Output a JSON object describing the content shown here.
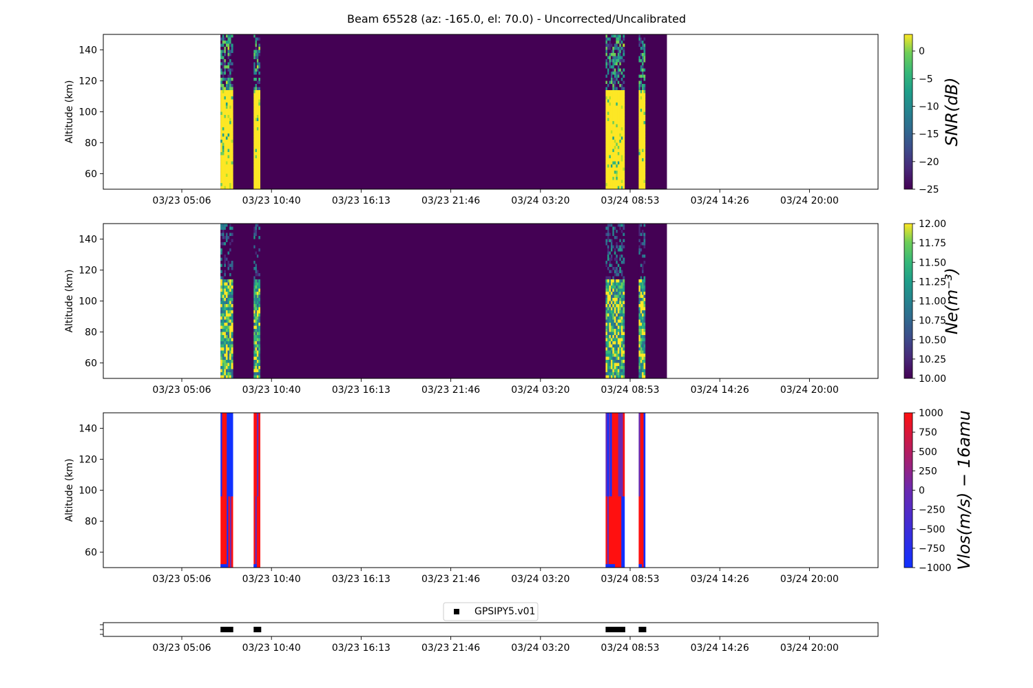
{
  "chart_data": {
    "title": "Beam 65528 (az: -165.0, el: 70.0) - Uncorrected/Uncalibrated",
    "x_ticks": [
      "03/23 05:06",
      "03/23 10:40",
      "03/23 16:13",
      "03/23 21:46",
      "03/24 03:20",
      "03/24 08:53",
      "03/24 14:26",
      "03/24 20:00"
    ],
    "y_ticks": [
      "60",
      "80",
      "100",
      "120",
      "140"
    ],
    "ylim": [
      50,
      150
    ],
    "bursts": [
      {
        "start": "03/23 07:30",
        "end": "03/23 08:16"
      },
      {
        "start": "03/23 09:33",
        "end": "03/23 09:57"
      },
      {
        "start": "03/24 07:22",
        "end": "03/24 08:32"
      },
      {
        "start": "03/24 09:25",
        "end": "03/24 09:49"
      }
    ],
    "data_end": "03/24 11:10",
    "panels": [
      {
        "type": "heatmap",
        "ylabel": "Altitude (km)",
        "colorbar_label": "SNR(dB)",
        "colormap": "viridis",
        "colorbar_ticks": [
          "0",
          "−5",
          "−10",
          "−15",
          "−20",
          "−25"
        ],
        "clim": [
          -25,
          3
        ]
      },
      {
        "type": "heatmap",
        "ylabel": "Altitude (km)",
        "colorbar_label": "Ne(m⁻³)",
        "colormap": "viridis",
        "colorbar_ticks": [
          "12.00",
          "11.75",
          "11.50",
          "11.25",
          "11.00",
          "10.75",
          "10.50",
          "10.25",
          "10.00"
        ],
        "clim": [
          10,
          12
        ]
      },
      {
        "type": "heatmap",
        "ylabel": "Altitude (km)",
        "colorbar_label": "Vlos(m/s) − 16amu",
        "colormap": "bwr",
        "colorbar_ticks": [
          "1000",
          "750",
          "500",
          "250",
          "0",
          "−250",
          "−500",
          "−750",
          "−1000"
        ],
        "clim": [
          -1000,
          1000
        ]
      },
      {
        "type": "scatter",
        "legend": "GPSIPY5.v01",
        "marker": "square",
        "marker_color": "#000000"
      }
    ]
  }
}
